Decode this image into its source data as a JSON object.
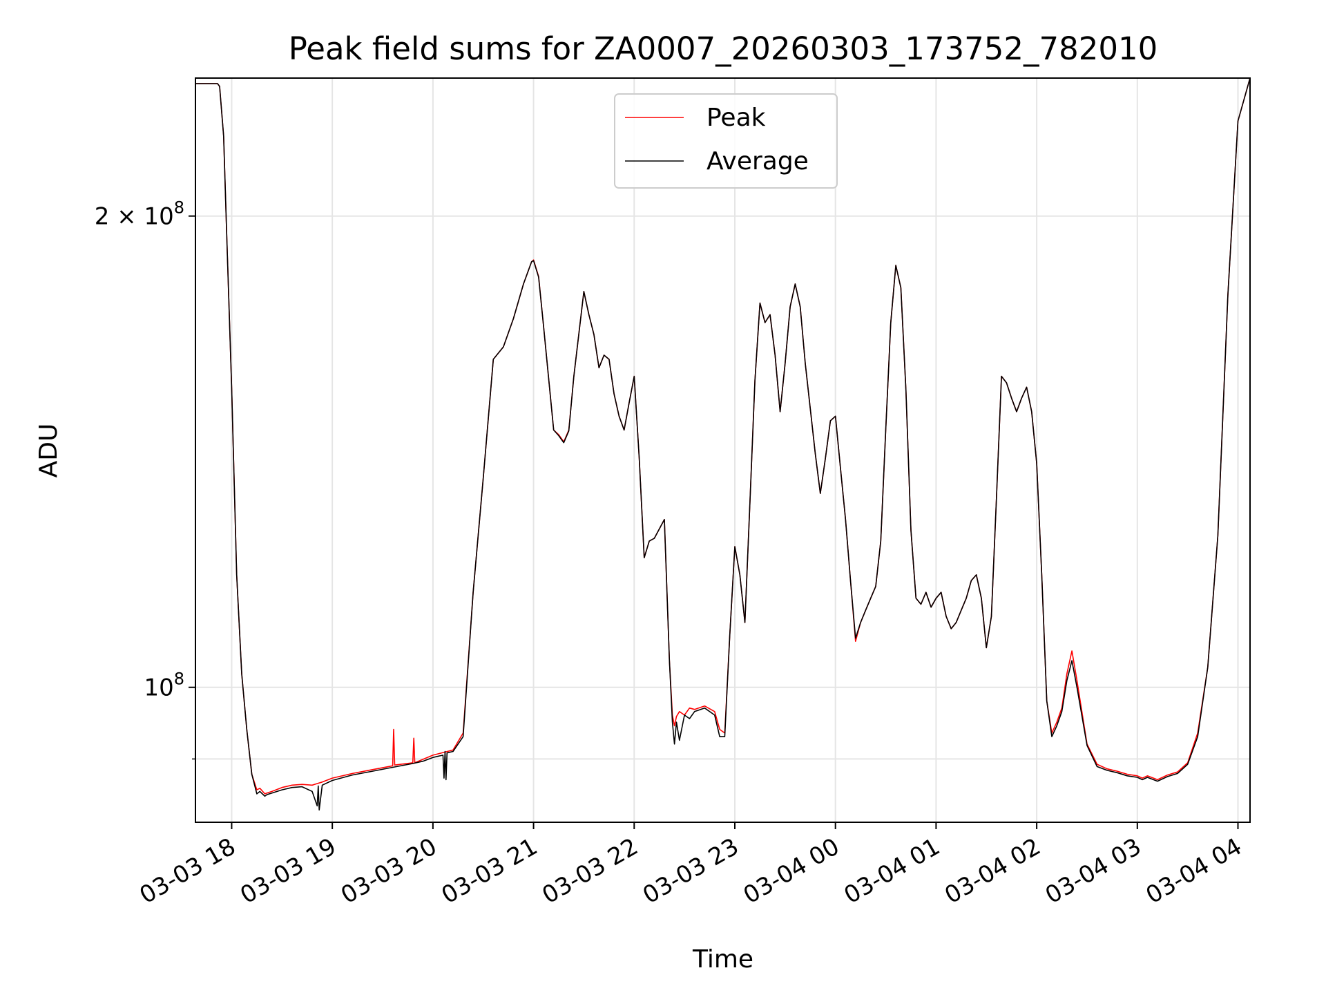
{
  "chart_data": {
    "type": "line",
    "title": "Peak field sums for ZA0007_20260303_173752_782010",
    "xlabel": "Time",
    "ylabel": "ADU",
    "x_unit": "hours since 03-03 00:00",
    "xlim": [
      17.64,
      28.12
    ],
    "ylim": [
      82000000,
      245000000
    ],
    "y_scale": "log",
    "grid": true,
    "legend_position": "top-center",
    "x_ticks": [
      {
        "value": 18,
        "label": "03-03 18"
      },
      {
        "value": 19,
        "label": "03-03 19"
      },
      {
        "value": 20,
        "label": "03-03 20"
      },
      {
        "value": 21,
        "label": "03-03 21"
      },
      {
        "value": 22,
        "label": "03-03 22"
      },
      {
        "value": 23,
        "label": "03-03 23"
      },
      {
        "value": 24,
        "label": "03-04 00"
      },
      {
        "value": 25,
        "label": "03-04 01"
      },
      {
        "value": 26,
        "label": "03-04 02"
      },
      {
        "value": 27,
        "label": "03-04 03"
      },
      {
        "value": 28,
        "label": "03-04 04"
      }
    ],
    "y_ticks": [
      {
        "value": 100000000,
        "base": "10",
        "exp": "8"
      },
      {
        "value": 200000000,
        "base": "2 × 10",
        "exp": "8"
      }
    ],
    "y_minor_gridlines": [
      90000000
    ],
    "series": [
      {
        "name": "Peak",
        "color": "#ff0000",
        "x": [
          17.64,
          17.86,
          17.88,
          17.92,
          17.95,
          18.0,
          18.05,
          18.1,
          18.15,
          18.2,
          18.25,
          18.28,
          18.33,
          18.35,
          18.4,
          18.5,
          18.6,
          18.7,
          18.8,
          18.85,
          18.9,
          19.0,
          19.2,
          19.4,
          19.6,
          19.61,
          19.62,
          19.8,
          19.81,
          19.82,
          20.0,
          20.2,
          20.3,
          20.4,
          20.5,
          20.6,
          20.7,
          20.8,
          20.9,
          20.98,
          21.0,
          21.05,
          21.1,
          21.2,
          21.25,
          21.3,
          21.35,
          21.4,
          21.5,
          21.55,
          21.6,
          21.65,
          21.7,
          21.75,
          21.8,
          21.85,
          21.9,
          21.95,
          22.0,
          22.05,
          22.1,
          22.15,
          22.2,
          22.3,
          22.35,
          22.38,
          22.4,
          22.42,
          22.45,
          22.5,
          22.55,
          22.6,
          22.7,
          22.8,
          22.85,
          22.9,
          22.95,
          23.0,
          23.05,
          23.1,
          23.15,
          23.2,
          23.25,
          23.3,
          23.35,
          23.4,
          23.45,
          23.5,
          23.55,
          23.6,
          23.65,
          23.7,
          23.8,
          23.85,
          23.9,
          23.95,
          24.0,
          24.05,
          24.1,
          24.15,
          24.2,
          24.25,
          24.3,
          24.35,
          24.4,
          24.45,
          24.5,
          24.55,
          24.6,
          24.65,
          24.7,
          24.75,
          24.8,
          24.85,
          24.9,
          24.95,
          25.0,
          25.05,
          25.1,
          25.15,
          25.2,
          25.25,
          25.3,
          25.35,
          25.4,
          25.45,
          25.5,
          25.55,
          25.6,
          25.65,
          25.7,
          25.75,
          25.8,
          25.85,
          25.9,
          25.95,
          26.0,
          26.05,
          26.1,
          26.15,
          26.2,
          26.25,
          26.3,
          26.35,
          26.4,
          26.5,
          26.6,
          26.7,
          26.8,
          26.9,
          27.0,
          27.05,
          27.1,
          27.2,
          27.3,
          27.4,
          27.5,
          27.6,
          27.7,
          27.8,
          27.9,
          28.0,
          28.12
        ],
        "values": [
          243000000,
          243000000,
          242000000,
          225000000,
          195000000,
          155000000,
          118000000,
          102000000,
          94000000,
          88000000,
          86000000,
          86200000,
          85500000,
          85600000,
          85800000,
          86300000,
          86600000,
          86700000,
          86600000,
          86800000,
          87000000,
          87500000,
          88100000,
          88600000,
          89100000,
          94000000,
          89200000,
          89500000,
          92800000,
          89500000,
          90500000,
          91200000,
          93500000,
          115000000,
          136000000,
          162000000,
          165000000,
          172000000,
          181000000,
          187000000,
          187500000,
          183000000,
          170000000,
          146000000,
          145000000,
          143500000,
          146000000,
          158000000,
          179000000,
          173000000,
          168000000,
          160000000,
          163000000,
          162000000,
          154000000,
          149000000,
          146000000,
          152000000,
          158000000,
          140000000,
          121000000,
          124000000,
          124500000,
          128000000,
          104000000,
          96000000,
          94500000,
          95800000,
          96500000,
          96000000,
          97000000,
          96800000,
          97300000,
          96500000,
          94000000,
          93500000,
          108000000,
          123000000,
          118000000,
          110000000,
          131000000,
          157000000,
          176000000,
          171000000,
          173000000,
          163000000,
          150000000,
          161000000,
          175000000,
          181000000,
          175000000,
          161000000,
          141000000,
          133000000,
          140000000,
          148000000,
          149000000,
          138000000,
          128000000,
          117000000,
          107000000,
          110000000,
          112000000,
          114000000,
          116000000,
          124000000,
          146000000,
          171000000,
          186000000,
          180000000,
          155000000,
          126000000,
          114000000,
          113000000,
          115000000,
          112500000,
          114000000,
          115000000,
          111000000,
          109000000,
          110000000,
          112000000,
          114000000,
          117000000,
          118000000,
          114000000,
          106000000,
          111000000,
          132000000,
          158000000,
          156500000,
          153000000,
          150000000,
          153000000,
          155500000,
          150000000,
          139000000,
          118000000,
          98000000,
          93500000,
          95000000,
          97000000,
          102000000,
          105500000,
          101000000,
          92000000,
          89300000,
          88700000,
          88400000,
          88000000,
          87800000,
          87500000,
          87800000,
          87300000,
          87900000,
          88300000,
          89500000,
          93500000,
          103000000,
          125000000,
          178000000,
          230000000,
          245000000
        ]
      },
      {
        "name": "Average",
        "color": "#000000",
        "x": [
          17.64,
          17.86,
          17.88,
          17.92,
          17.95,
          18.0,
          18.05,
          18.1,
          18.15,
          18.2,
          18.25,
          18.28,
          18.33,
          18.35,
          18.4,
          18.5,
          18.6,
          18.7,
          18.8,
          18.85,
          18.86,
          18.87,
          18.9,
          19.0,
          19.2,
          19.4,
          19.6,
          19.8,
          19.9,
          20.0,
          20.1,
          20.11,
          20.12,
          20.13,
          20.14,
          20.2,
          20.3,
          20.4,
          20.5,
          20.6,
          20.7,
          20.8,
          20.9,
          20.98,
          21.0,
          21.05,
          21.1,
          21.2,
          21.25,
          21.3,
          21.35,
          21.4,
          21.5,
          21.55,
          21.6,
          21.65,
          21.7,
          21.75,
          21.8,
          21.85,
          21.9,
          21.95,
          22.0,
          22.05,
          22.1,
          22.15,
          22.2,
          22.3,
          22.35,
          22.38,
          22.4,
          22.42,
          22.45,
          22.5,
          22.55,
          22.6,
          22.7,
          22.8,
          22.85,
          22.9,
          22.95,
          23.0,
          23.05,
          23.1,
          23.15,
          23.2,
          23.25,
          23.3,
          23.35,
          23.4,
          23.45,
          23.5,
          23.55,
          23.6,
          23.65,
          23.7,
          23.8,
          23.85,
          23.9,
          23.95,
          24.0,
          24.05,
          24.1,
          24.15,
          24.2,
          24.25,
          24.3,
          24.35,
          24.4,
          24.45,
          24.5,
          24.55,
          24.6,
          24.65,
          24.7,
          24.75,
          24.8,
          24.85,
          24.9,
          24.95,
          25.0,
          25.05,
          25.1,
          25.15,
          25.2,
          25.25,
          25.3,
          25.35,
          25.4,
          25.45,
          25.5,
          25.55,
          25.6,
          25.65,
          25.7,
          25.75,
          25.8,
          25.85,
          25.9,
          25.95,
          26.0,
          26.05,
          26.1,
          26.15,
          26.2,
          26.25,
          26.3,
          26.35,
          26.4,
          26.5,
          26.6,
          26.7,
          26.8,
          26.9,
          27.0,
          27.05,
          27.1,
          27.2,
          27.3,
          27.4,
          27.5,
          27.6,
          27.7,
          27.8,
          27.9,
          28.0,
          28.12
        ],
        "values": [
          243000000,
          243000000,
          242000000,
          225000000,
          195000000,
          155000000,
          118000000,
          102000000,
          94000000,
          88000000,
          85500000,
          85800000,
          85200000,
          85400000,
          85600000,
          86000000,
          86300000,
          86400000,
          85800000,
          84000000,
          86500000,
          83500000,
          86600000,
          87200000,
          87900000,
          88400000,
          88900000,
          89400000,
          89700000,
          90200000,
          90500000,
          87500000,
          91000000,
          87300000,
          90800000,
          91000000,
          93000000,
          115000000,
          136000000,
          162000000,
          165000000,
          172000000,
          181000000,
          187000000,
          187300000,
          182800000,
          170000000,
          146000000,
          144800000,
          143300000,
          145800000,
          158000000,
          179000000,
          173000000,
          168000000,
          160000000,
          163000000,
          162000000,
          154000000,
          149000000,
          146000000,
          152000000,
          158000000,
          140000000,
          121000000,
          124000000,
          124500000,
          128000000,
          104000000,
          95000000,
          92000000,
          95000000,
          92500000,
          96000000,
          95500000,
          96500000,
          97000000,
          96000000,
          93000000,
          93000000,
          108000000,
          123000000,
          118000000,
          110000000,
          131000000,
          157000000,
          176000000,
          171000000,
          173000000,
          163000000,
          150000000,
          161000000,
          175000000,
          181000000,
          175000000,
          161000000,
          141000000,
          133000000,
          140000000,
          148000000,
          149000000,
          138000000,
          128000000,
          117000000,
          107500000,
          110000000,
          112000000,
          114000000,
          116000000,
          124000000,
          146000000,
          171000000,
          186000000,
          180000000,
          155000000,
          126000000,
          114000000,
          113000000,
          115000000,
          112500000,
          114000000,
          115000000,
          111000000,
          109000000,
          110000000,
          112000000,
          114000000,
          117000000,
          118000000,
          114000000,
          106000000,
          111000000,
          132000000,
          158000000,
          156500000,
          153000000,
          150000000,
          153000000,
          155500000,
          150000000,
          139000000,
          118000000,
          98000000,
          93000000,
          94500000,
          96500000,
          101000000,
          104000000,
          100000000,
          91800000,
          89000000,
          88500000,
          88200000,
          87800000,
          87600000,
          87300000,
          87600000,
          87100000,
          87700000,
          88100000,
          89300000,
          93000000,
          103000000,
          125000000,
          178000000,
          230000000,
          245000000
        ]
      }
    ]
  }
}
